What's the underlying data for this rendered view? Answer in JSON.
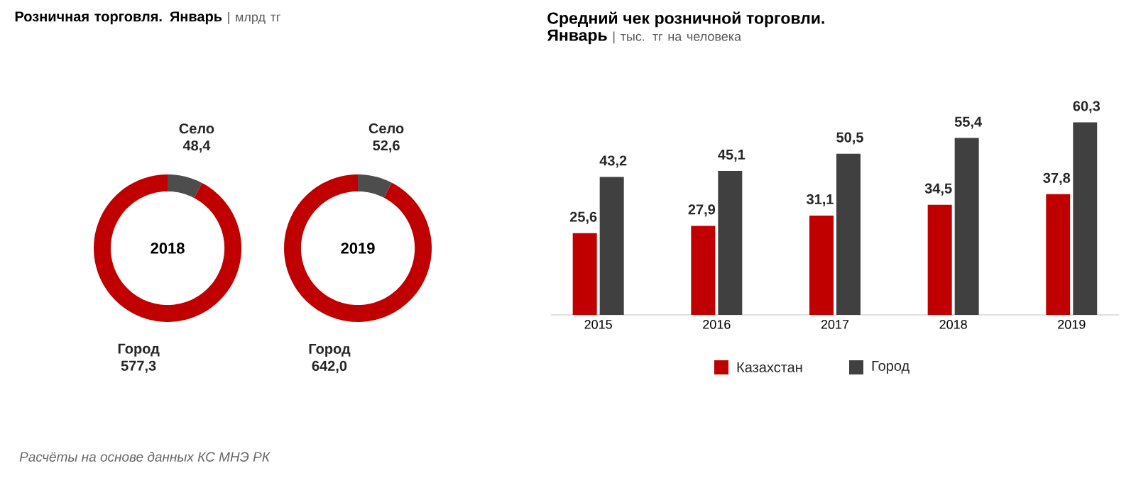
{
  "chart_data": [
    {
      "type": "donut",
      "title": "Розничная торговля. Январь",
      "subtitle": "| млрд тг",
      "categories": [
        "Село",
        "Город"
      ],
      "values": [
        48.4,
        577.3
      ],
      "value_labels": [
        "48,4",
        "577,3"
      ],
      "colors": [
        "#4d4d4d",
        "#c00000"
      ],
      "annotations": [
        "2018"
      ]
    },
    {
      "type": "donut",
      "categories": [
        "Село",
        "Город"
      ],
      "values": [
        52.6,
        642.0
      ],
      "value_labels": [
        "52,6",
        "642,0"
      ],
      "colors": [
        "#4d4d4d",
        "#c00000"
      ],
      "annotations": [
        "2019"
      ]
    },
    {
      "type": "bar",
      "title": "Средний чек розничной торговли. Январь",
      "subtitle": "| тыс. тг на человека",
      "categories": [
        "2015",
        "2016",
        "2017",
        "2018",
        "2019"
      ],
      "legend": "bottom",
      "series": [
        {
          "name": "Казахстан",
          "color": "#c00000",
          "values": [
            25.6,
            27.9,
            31.1,
            34.5,
            37.8
          ],
          "value_labels": [
            "25,6",
            "27,9",
            "31,1",
            "34,5",
            "37,8"
          ]
        },
        {
          "name": "Город",
          "color": "#404040",
          "values": [
            43.2,
            45.1,
            50.5,
            55.4,
            60.3
          ],
          "value_labels": [
            "43,2",
            "45,1",
            "50,5",
            "55,4",
            "60,3"
          ]
        }
      ],
      "annotations": [
        "Расчёты на основе данных КС МНЭ РК"
      ]
    }
  ]
}
